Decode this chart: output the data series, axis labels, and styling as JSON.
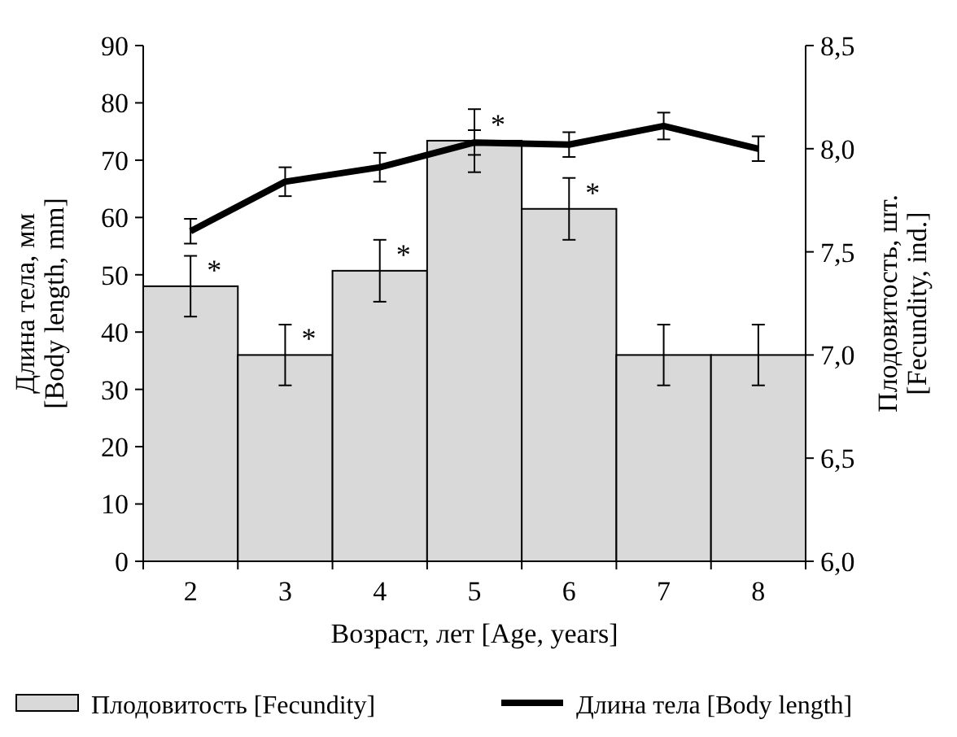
{
  "chart_data": {
    "type": "bar",
    "xlabel": "Возраст, лет [Age, years]",
    "ylabel": "Длина тела, мм\n[Body length, mm]",
    "y2label": "Плодовитость, шт.\n[Fecundity, ind.]",
    "categories": [
      "2",
      "3",
      "4",
      "5",
      "6",
      "7",
      "8"
    ],
    "series": [
      {
        "name": "Плодовитость [Fecundity]",
        "color": "#d9d9d9",
        "values": [
          48,
          36,
          50.7,
          73.4,
          61.5,
          36,
          36
        ],
        "errors": [
          5.3,
          5.3,
          5.4,
          5.5,
          5.4,
          5.3,
          5.3
        ]
      },
      {
        "name": "Длина тела [Body length]",
        "type": "line",
        "axis": "y2",
        "color": "#000000",
        "values": [
          7.6,
          7.84,
          7.91,
          8.03,
          8.02,
          8.11,
          8.0
        ],
        "errors": [
          0.06,
          0.07,
          0.07,
          0.06,
          0.06,
          0.065,
          0.06
        ]
      }
    ],
    "ylim": [
      0,
      90
    ],
    "yticks": [
      0,
      10,
      20,
      30,
      40,
      50,
      60,
      70,
      80,
      90
    ],
    "y2lim": [
      6,
      8.5
    ],
    "y2ticks": [
      {
        "value": 6,
        "label": "6,0"
      },
      {
        "value": 6.5,
        "label": "6,5"
      },
      {
        "value": 7,
        "label": "7,0"
      },
      {
        "value": 7.5,
        "label": "7,5"
      },
      {
        "value": 8,
        "label": "8,0"
      },
      {
        "value": 8.5,
        "label": "8,5"
      }
    ],
    "annotations": [
      {
        "text": "*",
        "x": "2",
        "y": 48
      },
      {
        "text": "*",
        "x": "3",
        "y": 36
      },
      {
        "text": "*",
        "x": "4",
        "y": 50.7
      },
      {
        "text": "*",
        "x": "5",
        "y": 73.4
      },
      {
        "text": "*",
        "x": "6",
        "y": 61.5
      }
    ],
    "legend": "bottom",
    "marker": "none",
    "line_style": "solid"
  }
}
